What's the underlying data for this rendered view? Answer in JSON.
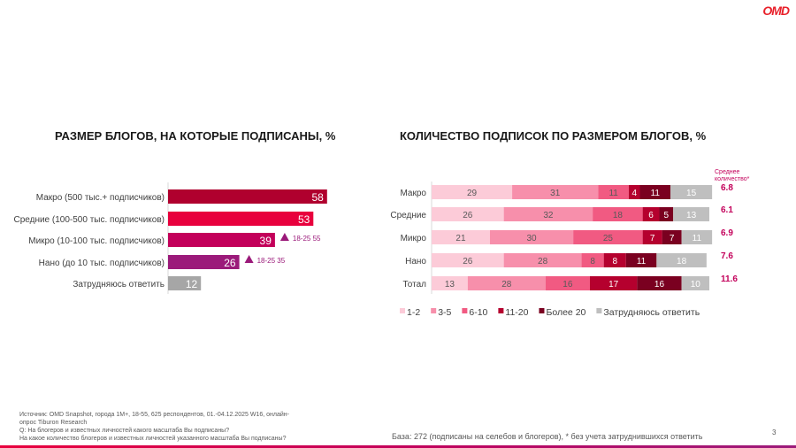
{
  "logo": "OMD",
  "page_number": "3",
  "chart_data": [
    {
      "type": "bar",
      "title": "РАЗМЕР БЛОГОВ, НА КОТОРЫЕ ПОДПИСАНЫ, %",
      "categories": [
        "Макро (500 тыс.+ подписчиков)",
        "Средние (100-500 тыс. подписчиков)",
        "Микро (10-100 тыс. подписчиков)",
        "Нано (до 10 тыс. подписчиков)",
        "Затрудняюсь ответить"
      ],
      "values": [
        58,
        53,
        39,
        26,
        12
      ],
      "colors": [
        "#b0002e",
        "#e8003d",
        "#c3005a",
        "#9b1a7a",
        "#a6a6a6"
      ],
      "annotations": [
        {
          "category": "Микро (10-100 тыс. подписчиков)",
          "text": "18-25 55",
          "icon": "triangle-up-icon"
        },
        {
          "category": "Нано (до 10 тыс. подписчиков)",
          "text": "18-25 35",
          "icon": "triangle-up-icon"
        }
      ]
    },
    {
      "type": "bar",
      "stacked": true,
      "orientation": "horizontal",
      "title": "КОЛИЧЕСТВО ПОДПИСОК ПО РАЗМЕРОМ БЛОГОВ, %",
      "categories": [
        "Макро",
        "Средние",
        "Микро",
        "Нано",
        "Тотал"
      ],
      "series": [
        {
          "name": "1-2",
          "values": [
            29,
            26,
            21,
            26,
            13
          ],
          "color": "#fccbd8",
          "label_color": "#595959"
        },
        {
          "name": "3-5",
          "values": [
            31,
            32,
            30,
            28,
            28
          ],
          "color": "#f78fab",
          "label_color": "#595959"
        },
        {
          "name": "6-10",
          "values": [
            11,
            18,
            25,
            8,
            16
          ],
          "color": "#f15a82",
          "label_color": "#595959"
        },
        {
          "name": "11-20",
          "values": [
            4,
            6,
            7,
            8,
            17
          ],
          "color": "#b5002e",
          "label_color": "#ffffff"
        },
        {
          "name": "Более 20",
          "values": [
            11,
            5,
            7,
            11,
            16
          ],
          "color": "#7a0020",
          "label_color": "#ffffff"
        },
        {
          "name": "Затрудняюсь ответить",
          "values": [
            15,
            13,
            11,
            18,
            10
          ],
          "color": "#bfbfbf",
          "label_color": "#ffffff"
        }
      ],
      "side_header": "Среднее количество*",
      "side_values": [
        "6.8",
        "6.1",
        "6.9",
        "7.6",
        "11.6"
      ],
      "legend_position": "bottom"
    }
  ],
  "footer": {
    "source_lines": [
      "Источник: OMD Snapshot, города 1М+, 18-55, 625  респондентов, 01.-04.12.2025 W16, онлайн-",
      "опрос Tiburon Research",
      "Q:  На блогеров и известных личностей какого масштаба Вы подписаны?",
      "На какое количество блогеров и известных личностей указанного масштаба Вы подписаны?"
    ],
    "base": "База: 272 (подписаны на селебов и блогеров), * без учета затруднившихся ответить"
  }
}
